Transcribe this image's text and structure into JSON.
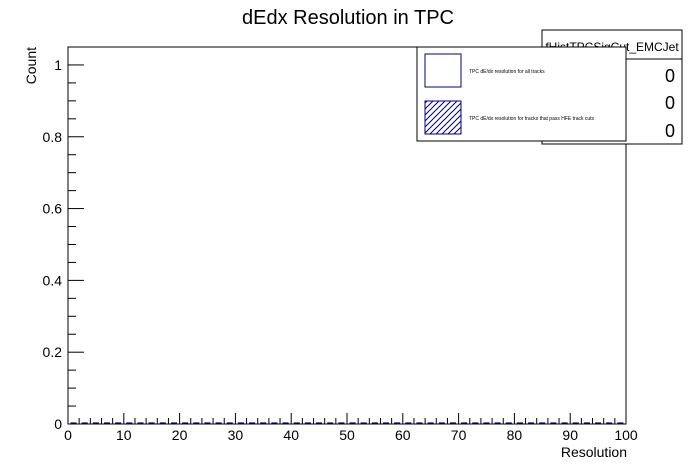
{
  "chart_data": {
    "type": "bar",
    "title": "dEdx Resolution in TPC",
    "xlabel": "Resolution",
    "ylabel": "Count",
    "xlim": [
      0,
      100
    ],
    "ylim": [
      0,
      1.05
    ],
    "x_ticks": [
      "0",
      "10",
      "20",
      "30",
      "40",
      "50",
      "60",
      "70",
      "80",
      "90",
      "100"
    ],
    "y_ticks": [
      "0",
      "0.2",
      "0.4",
      "0.6",
      "0.8",
      "1"
    ],
    "x_tick_values": [
      0,
      10,
      20,
      30,
      40,
      50,
      60,
      70,
      80,
      90,
      100
    ],
    "y_tick_values": [
      0,
      0.2,
      0.4,
      0.6,
      0.8,
      1
    ],
    "bin_width": 2,
    "bins": 50,
    "series": [
      {
        "name": "TPC dE/dx resolution for all tracks",
        "color": "#000080",
        "fill": "none",
        "values": []
      },
      {
        "name": "TPC dE/dx resolution for tracks that pass HFE track cuts",
        "color": "#000080",
        "fill": "hatched",
        "values": []
      }
    ],
    "grid": false,
    "legend_position": "top-right"
  },
  "stats_box": {
    "name": "fHistTPCSigCut_EMCJet",
    "values": [
      "0",
      "0",
      "0"
    ]
  },
  "legend": {
    "items": [
      {
        "label": "TPC dE/dx resolution for all tracks",
        "style": "open"
      },
      {
        "label": "TPC dE/dx resolution for tracks that pass HFE track cuts",
        "style": "hatched"
      }
    ]
  },
  "colors": {
    "histogram": "#000080",
    "frame": "#000000",
    "background": "#ffffff"
  }
}
